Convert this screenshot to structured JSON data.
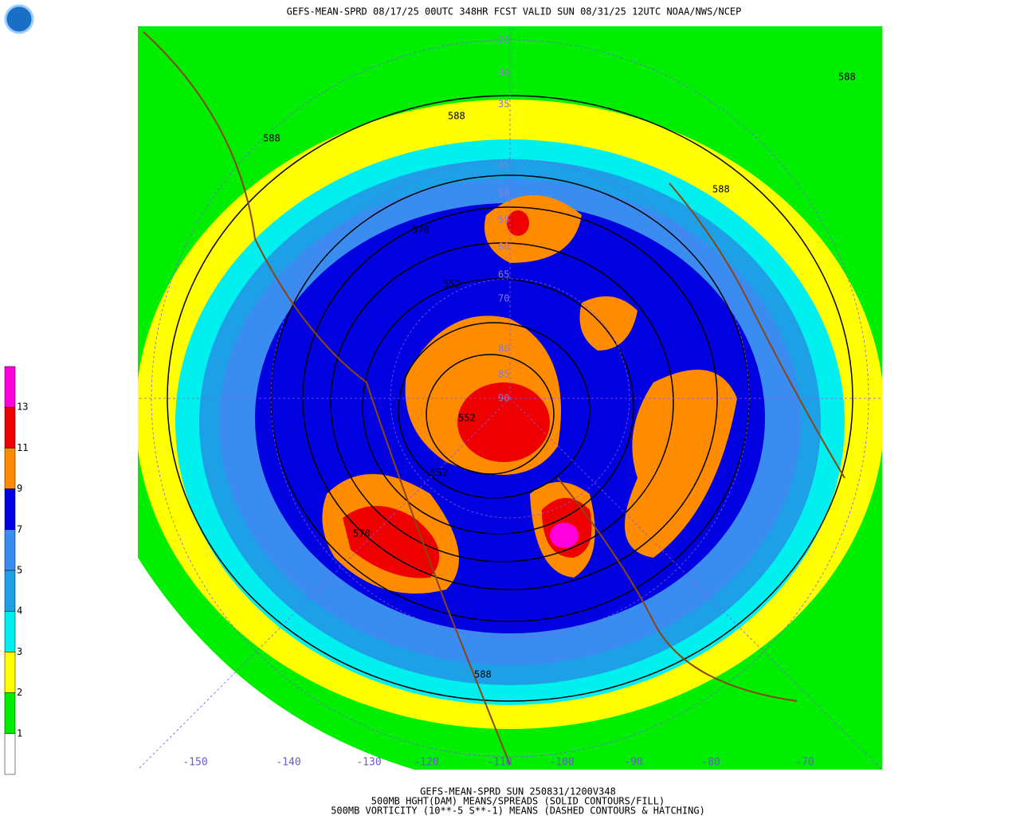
{
  "header": {
    "title": "GEFS-MEAN-SPRD 08/17/25 00UTC 348HR FCST VALID SUN 08/31/25 12UTC NOAA/NWS/NCEP"
  },
  "legend": {
    "labels": [
      "13",
      "11",
      "9",
      "7",
      "5",
      "4",
      "3",
      "2",
      "1"
    ]
  },
  "contour_labels": [
    "588",
    "588",
    "588",
    "570",
    "552",
    "552",
    "570",
    "588",
    "588",
    "552"
  ],
  "lat_labels": [
    "25",
    "30",
    "35",
    "45",
    "50",
    "55",
    "60",
    "65",
    "70",
    "80",
    "85",
    "90"
  ],
  "lon_labels": [
    "-150",
    "-140",
    "-130",
    "-120",
    "-110",
    "-100",
    "-90",
    "-80",
    "-70"
  ],
  "footer": {
    "line1": "GEFS-MEAN-SPRD SUN 250831/1200V348",
    "line2": "500MB HGHT(DAM) MEANS/SPREADS (SOLID CONTOURS/FILL)",
    "line3": "500MB VORTICITY (10**-5 S**-1) MEANS (DASHED CONTOURS & HATCHING)"
  }
}
